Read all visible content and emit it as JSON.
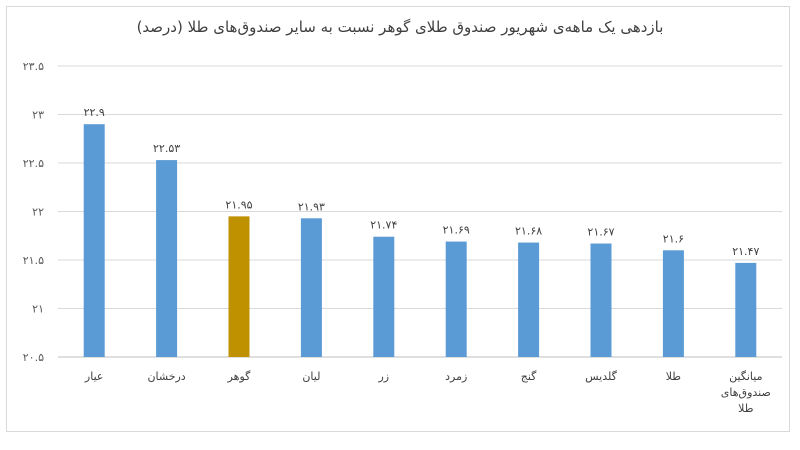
{
  "chart_data": {
    "type": "bar",
    "title": "بازدهی یک ماهه‌ی شهریور صندوق طلای گوهر نسبت به سایر صندوق‌های طلا (درصد)",
    "xlabel": "",
    "ylabel": "",
    "ylim": [
      20.5,
      23.5
    ],
    "yticks": [
      20.5,
      21,
      21.5,
      22,
      22.5,
      23,
      23.5
    ],
    "ytick_labels": [
      "۲۰.۵",
      "۲۱",
      "۲۱.۵",
      "۲۲",
      "۲۲.۵",
      "۲۳",
      "۲۳.۵"
    ],
    "grid": true,
    "legend": "none",
    "categories": [
      "عیار",
      "درخشان",
      "گوهر",
      "لیان",
      "زر",
      "زمرد",
      "گنج",
      "گلدیس",
      "طلا",
      "میانگین صندوق‌های طلا"
    ],
    "category_lines": [
      [
        "عیار"
      ],
      [
        "درخشان"
      ],
      [
        "گوهر"
      ],
      [
        "لیان"
      ],
      [
        "زر"
      ],
      [
        "زمرد"
      ],
      [
        "گنج"
      ],
      [
        "گلدیس"
      ],
      [
        "طلا"
      ],
      [
        "میانگین",
        "صندوق‌های",
        "طلا"
      ]
    ],
    "values": [
      22.9,
      22.53,
      21.95,
      21.93,
      21.74,
      21.69,
      21.68,
      21.67,
      21.6,
      21.47
    ],
    "value_labels": [
      "۲۲.۹",
      "۲۲.۵۳",
      "۲۱.۹۵",
      "۲۱.۹۳",
      "۲۱.۷۴",
      "۲۱.۶۹",
      "۲۱.۶۸",
      "۲۱.۶۷",
      "۲۱.۶",
      "۲۱.۴۷"
    ],
    "colors": {
      "default": "#5b9bd5",
      "highlight": "#bf9000",
      "grid": "#d9d9d9",
      "axis": "#bfbfbf"
    },
    "highlight_index": 2
  }
}
